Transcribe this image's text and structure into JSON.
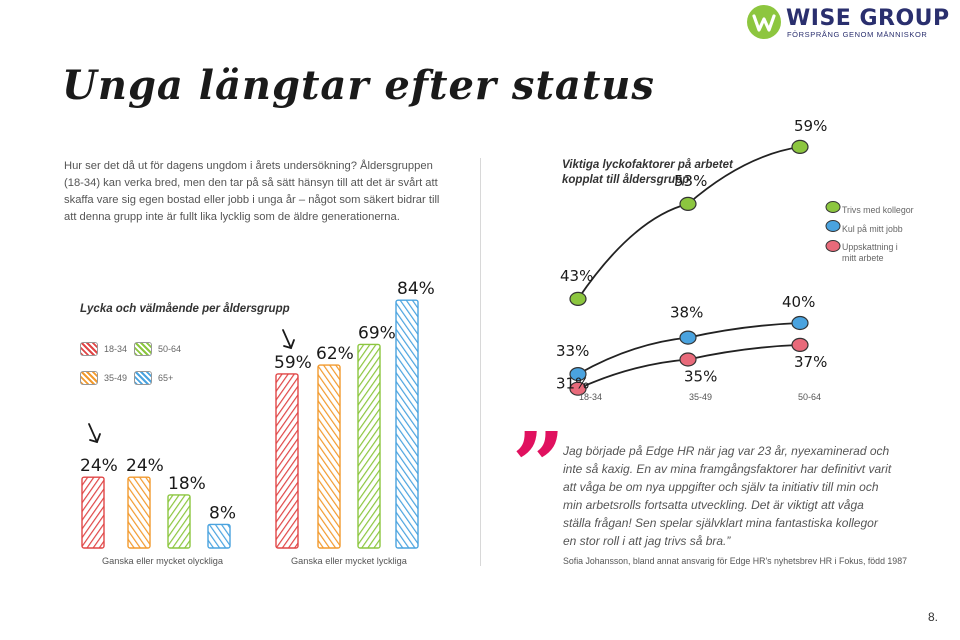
{
  "brand": {
    "name": "WISE GROUP",
    "tagline": "FÖRSPRÅNG GENOM MÄNNISKOR",
    "colors": {
      "logo_green": "#8dc63f",
      "logo_blue": "#2a2f6e",
      "quote_pink": "#e0115f"
    }
  },
  "page": {
    "title": "Unga längtar efter status",
    "intro": "Hur ser det då ut för dagens ungdom i årets undersökning? Åldersgruppen (18-34) kan verka bred, men den tar på så sätt hänsyn till att det är svårt att skaffa vare sig egen bostad eller jobb i unga år – något som säkert bidrar till att denna grupp inte är fullt lika lycklig som de äldre generationerna.",
    "page_number": "8."
  },
  "bar_chart": {
    "title": "Lycka och välmående per åldersgrupp",
    "legend": [
      "18-34",
      "50-64",
      "35-49",
      "65+"
    ],
    "group_labels": [
      "Ganska eller mycket olyckliga",
      "Ganska eller mycket lyckliga"
    ]
  },
  "line_chart": {
    "title": "Viktiga lyckofaktorer på arbetet kopplat till åldersgrupp",
    "x_labels": [
      "18-34",
      "35-49",
      "50-64"
    ],
    "legend": [
      "Trivs med kollegor",
      "Kul på mitt jobb",
      "Uppskattning i mitt arbete"
    ]
  },
  "chart_data": [
    {
      "type": "bar",
      "title": "Lycka och välmående per åldersgrupp",
      "ylim": [
        0,
        100
      ],
      "categories": [
        "Ganska eller mycket olyckliga",
        "Ganska eller mycket lyckliga"
      ],
      "series": [
        {
          "name": "18-34",
          "values": [
            24,
            59
          ],
          "color": "#e04646"
        },
        {
          "name": "35-49",
          "values": [
            24,
            62
          ],
          "color": "#f29a2e"
        },
        {
          "name": "50-64",
          "values": [
            18,
            69
          ],
          "color": "#8cc63f"
        },
        {
          "name": "65+",
          "values": [
            8,
            84
          ],
          "color": "#4aa3df"
        }
      ],
      "data_labels": [
        [
          "24%",
          "24%",
          "18%",
          "8%"
        ],
        [
          "59%",
          "62%",
          "69%",
          "84%"
        ]
      ],
      "annotations": [
        "arrow-18-34-olyckliga",
        "arrow-18-34-lyckliga"
      ]
    },
    {
      "type": "line",
      "title": "Viktiga lyckofaktorer på arbetet kopplat till åldersgrupp",
      "categories": [
        "18-34",
        "35-49",
        "50-64"
      ],
      "series": [
        {
          "name": "Trivs med kollegor",
          "values": [
            43,
            53,
            59
          ],
          "labels": [
            "43%",
            "53%",
            "59%"
          ],
          "color": "#8cc63f"
        },
        {
          "name": "Kul på mitt jobb",
          "values": [
            33,
            38,
            40
          ],
          "labels": [
            "33%",
            "38%",
            "40%"
          ],
          "color": "#4aa3df"
        },
        {
          "name": "Uppskattning i mitt arbete",
          "values": [
            31,
            35,
            37
          ],
          "labels": [
            "31%",
            "35%",
            "37%"
          ],
          "color": "#e86a7a"
        }
      ]
    }
  ],
  "quote": {
    "mark": "”",
    "text": "Jag började på Edge HR när jag var 23 år, nyexaminerad och inte så kaxig. En av mina framgångsfaktorer har definitivt varit att våga be om nya uppgifter och själv ta initiativ till min och min arbetsrolls fortsatta utveckling. Det är viktigt att våga ställa frågan! Sen spelar självklart mina fantastiska kollegor en stor roll i att jag trivs så bra.”",
    "attribution": "Sofia Johansson, bland annat ansvarig för Edge HR's nyhetsbrev HR i Fokus, född 1987"
  }
}
